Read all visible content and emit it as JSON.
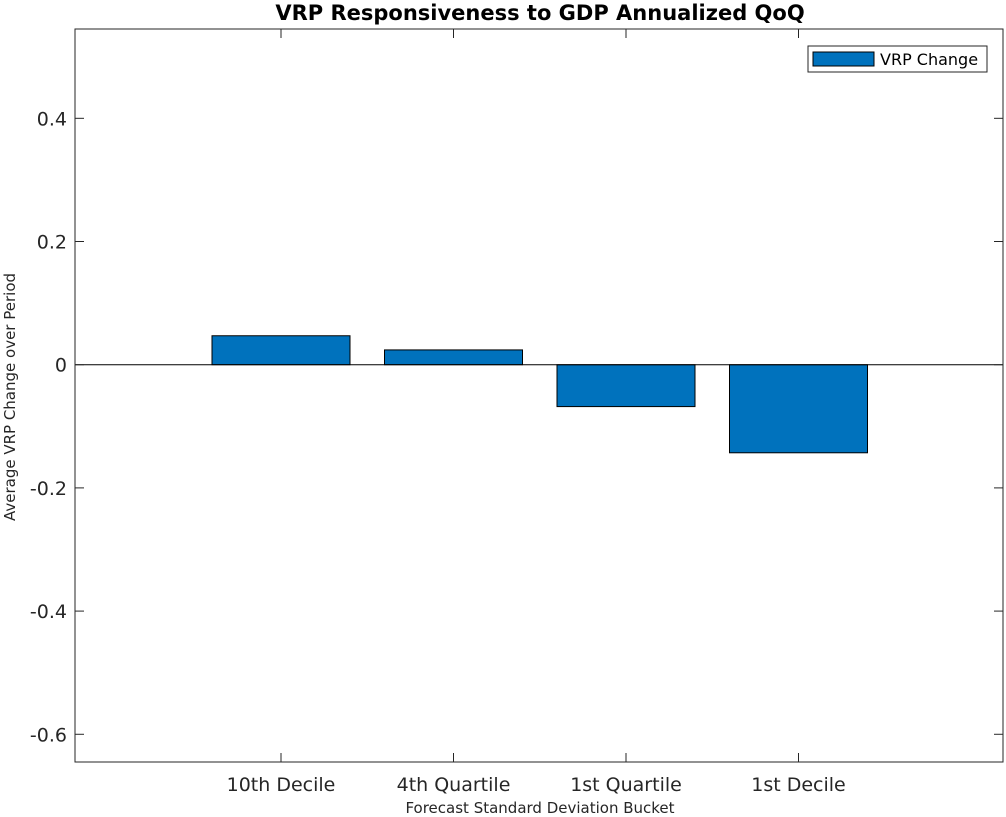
{
  "chart_data": {
    "type": "bar",
    "title": "VRP Responsiveness to GDP Annualized QoQ",
    "xlabel": "Forecast Standard Deviation Bucket",
    "ylabel": "Average VRP Change over Period",
    "categories": [
      "10th Decile",
      "4th Quartile",
      "1st Quartile",
      "1st Decile"
    ],
    "series": [
      {
        "name": "VRP Change",
        "values": [
          0.047,
          0.024,
          -0.068,
          -0.143
        ],
        "color": "#0072BD"
      }
    ],
    "ylim": [
      -0.645,
      0.545
    ],
    "yticks": [
      0.4,
      0.2,
      0,
      -0.2,
      -0.4,
      -0.6
    ],
    "ytick_labels": [
      "0.4",
      "0.2",
      "0",
      "-0.2",
      "-0.4",
      "-0.6"
    ],
    "legend_position": "top-right",
    "grid": false,
    "box": true
  }
}
